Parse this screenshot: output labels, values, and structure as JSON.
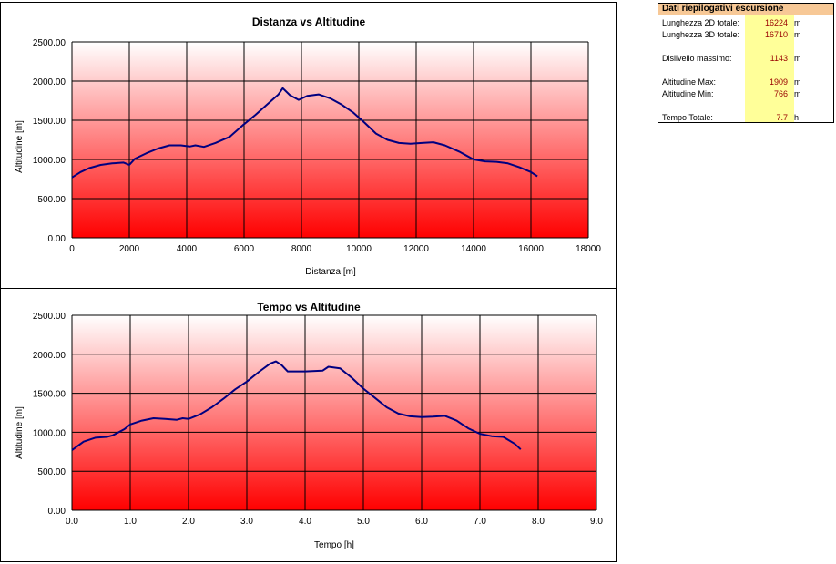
{
  "charts": {
    "distance": {
      "title": "Distanza vs Altitudine",
      "xlabel": "Distanza [m]",
      "ylabel": "Altitudine [m]"
    },
    "time": {
      "title": "Tempo vs Altitudine",
      "xlabel": "Tempo [h]",
      "ylabel": "Altitudine [m]"
    }
  },
  "summary": {
    "title": "Dati riepilogativi escursione",
    "rows": [
      {
        "label": "Lunghezza 2D totale:",
        "value": "16224",
        "unit": "m"
      },
      {
        "label": "Lunghezza 3D totale:",
        "value": "16710",
        "unit": "m"
      },
      {
        "label": "Dislivello massimo:",
        "value": "1143",
        "unit": "m"
      },
      {
        "label": "Altitudine Max:",
        "value": "1909",
        "unit": "m"
      },
      {
        "label": "Altitudine Min:",
        "value": "766",
        "unit": "m"
      },
      {
        "label": "Tempo Totale:",
        "value": "7.7",
        "unit": "h"
      }
    ]
  },
  "chart_data": [
    {
      "type": "line",
      "title": "Distanza vs Altitudine",
      "xlabel": "Distanza [m]",
      "ylabel": "Altitudine [m]",
      "xlim": [
        0,
        18000
      ],
      "ylim": [
        0,
        2500
      ],
      "xticks": [
        0,
        2000,
        4000,
        6000,
        8000,
        10000,
        12000,
        14000,
        16000,
        18000
      ],
      "xtick_labels": [
        "0",
        "2000",
        "4000",
        "6000",
        "8000",
        "10000",
        "12000",
        "14000",
        "16000",
        "18000"
      ],
      "yticks": [
        0,
        500,
        1000,
        1500,
        2000,
        2500
      ],
      "ytick_labels": [
        "0.00",
        "500.00",
        "1000.00",
        "1500.00",
        "2000.00",
        "2500.00"
      ],
      "grid": true,
      "background": "gradient white to red",
      "line_color": "#000080",
      "series": [
        {
          "x": [
            0,
            300,
            600,
            1000,
            1400,
            1800,
            2000,
            2200,
            2600,
            3000,
            3400,
            3800,
            4100,
            4300,
            4600,
            5000,
            5500,
            6000,
            6400,
            6800,
            7200,
            7350,
            7600,
            7900,
            8200,
            8600,
            9000,
            9400,
            9800,
            10200,
            10600,
            11000,
            11400,
            11800,
            12200,
            12600,
            13000,
            13500,
            14000,
            14400,
            14800,
            15200,
            15600,
            16000,
            16224
          ],
          "y": [
            770,
            840,
            890,
            930,
            950,
            960,
            930,
            1010,
            1080,
            1140,
            1180,
            1180,
            1165,
            1180,
            1160,
            1210,
            1290,
            1450,
            1570,
            1700,
            1830,
            1909,
            1820,
            1760,
            1810,
            1830,
            1780,
            1700,
            1600,
            1470,
            1330,
            1250,
            1210,
            1200,
            1210,
            1220,
            1180,
            1100,
            1000,
            975,
            970,
            950,
            900,
            840,
            785
          ]
        }
      ]
    },
    {
      "type": "line",
      "title": "Tempo vs Altitudine",
      "xlabel": "Tempo [h]",
      "ylabel": "Altitudine [m]",
      "xlim": [
        0,
        9
      ],
      "ylim": [
        0,
        2500
      ],
      "xticks": [
        0,
        1,
        2,
        3,
        4,
        5,
        6,
        7,
        8,
        9
      ],
      "xtick_labels": [
        "0.0",
        "1.0",
        "2.0",
        "3.0",
        "4.0",
        "5.0",
        "6.0",
        "7.0",
        "8.0",
        "9.0"
      ],
      "yticks": [
        0,
        500,
        1000,
        1500,
        2000,
        2500
      ],
      "ytick_labels": [
        "0.00",
        "500.00",
        "1000.00",
        "1500.00",
        "2000.00",
        "2500.00"
      ],
      "grid": true,
      "background": "gradient white to red",
      "line_color": "#000080",
      "series": [
        {
          "x": [
            0,
            0.2,
            0.4,
            0.6,
            0.7,
            0.9,
            1.0,
            1.2,
            1.4,
            1.6,
            1.8,
            1.9,
            2.0,
            2.2,
            2.4,
            2.6,
            2.8,
            3.0,
            3.2,
            3.4,
            3.5,
            3.6,
            3.7,
            4.0,
            4.3,
            4.4,
            4.6,
            4.8,
            5.0,
            5.2,
            5.4,
            5.6,
            5.8,
            6.0,
            6.2,
            6.4,
            6.6,
            6.8,
            7.0,
            7.2,
            7.4,
            7.6,
            7.7
          ],
          "y": [
            770,
            880,
            930,
            940,
            960,
            1040,
            1100,
            1150,
            1180,
            1170,
            1160,
            1180,
            1170,
            1230,
            1320,
            1430,
            1550,
            1650,
            1770,
            1880,
            1909,
            1860,
            1780,
            1780,
            1790,
            1840,
            1820,
            1700,
            1560,
            1440,
            1320,
            1240,
            1205,
            1195,
            1200,
            1210,
            1150,
            1050,
            980,
            950,
            940,
            850,
            780
          ]
        }
      ]
    }
  ]
}
